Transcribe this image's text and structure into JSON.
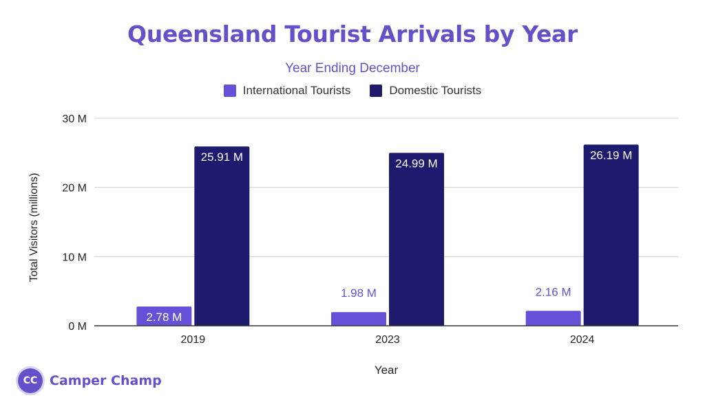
{
  "chart_data": {
    "type": "bar",
    "title": "Queensland Tourist Arrivals by Year",
    "subtitle": "Year Ending December",
    "xlabel": "Year",
    "ylabel": "Total Visitors (millions)",
    "categories": [
      "2019",
      "2023",
      "2024"
    ],
    "series": [
      {
        "name": "International Tourists",
        "values": [
          2.78,
          1.98,
          2.16
        ],
        "labels": [
          "2.78 M",
          "1.98 M",
          "2.16 M"
        ],
        "color": "#6650d8"
      },
      {
        "name": "Domestic Tourists",
        "values": [
          25.91,
          24.99,
          26.19
        ],
        "labels": [
          "25.91 M",
          "24.99 M",
          "26.19 M"
        ],
        "color": "#1e1a6e"
      }
    ],
    "ylim": [
      0,
      30
    ],
    "yticks": [
      0,
      10,
      20,
      30
    ],
    "ytick_labels": [
      "0 M",
      "10 M",
      "20 M",
      "30 M"
    ],
    "grid": true,
    "legend_position": "top"
  },
  "brand": {
    "logo_text": "CC",
    "name": "Camper Champ"
  },
  "colors": {
    "accent": "#6650c8"
  }
}
